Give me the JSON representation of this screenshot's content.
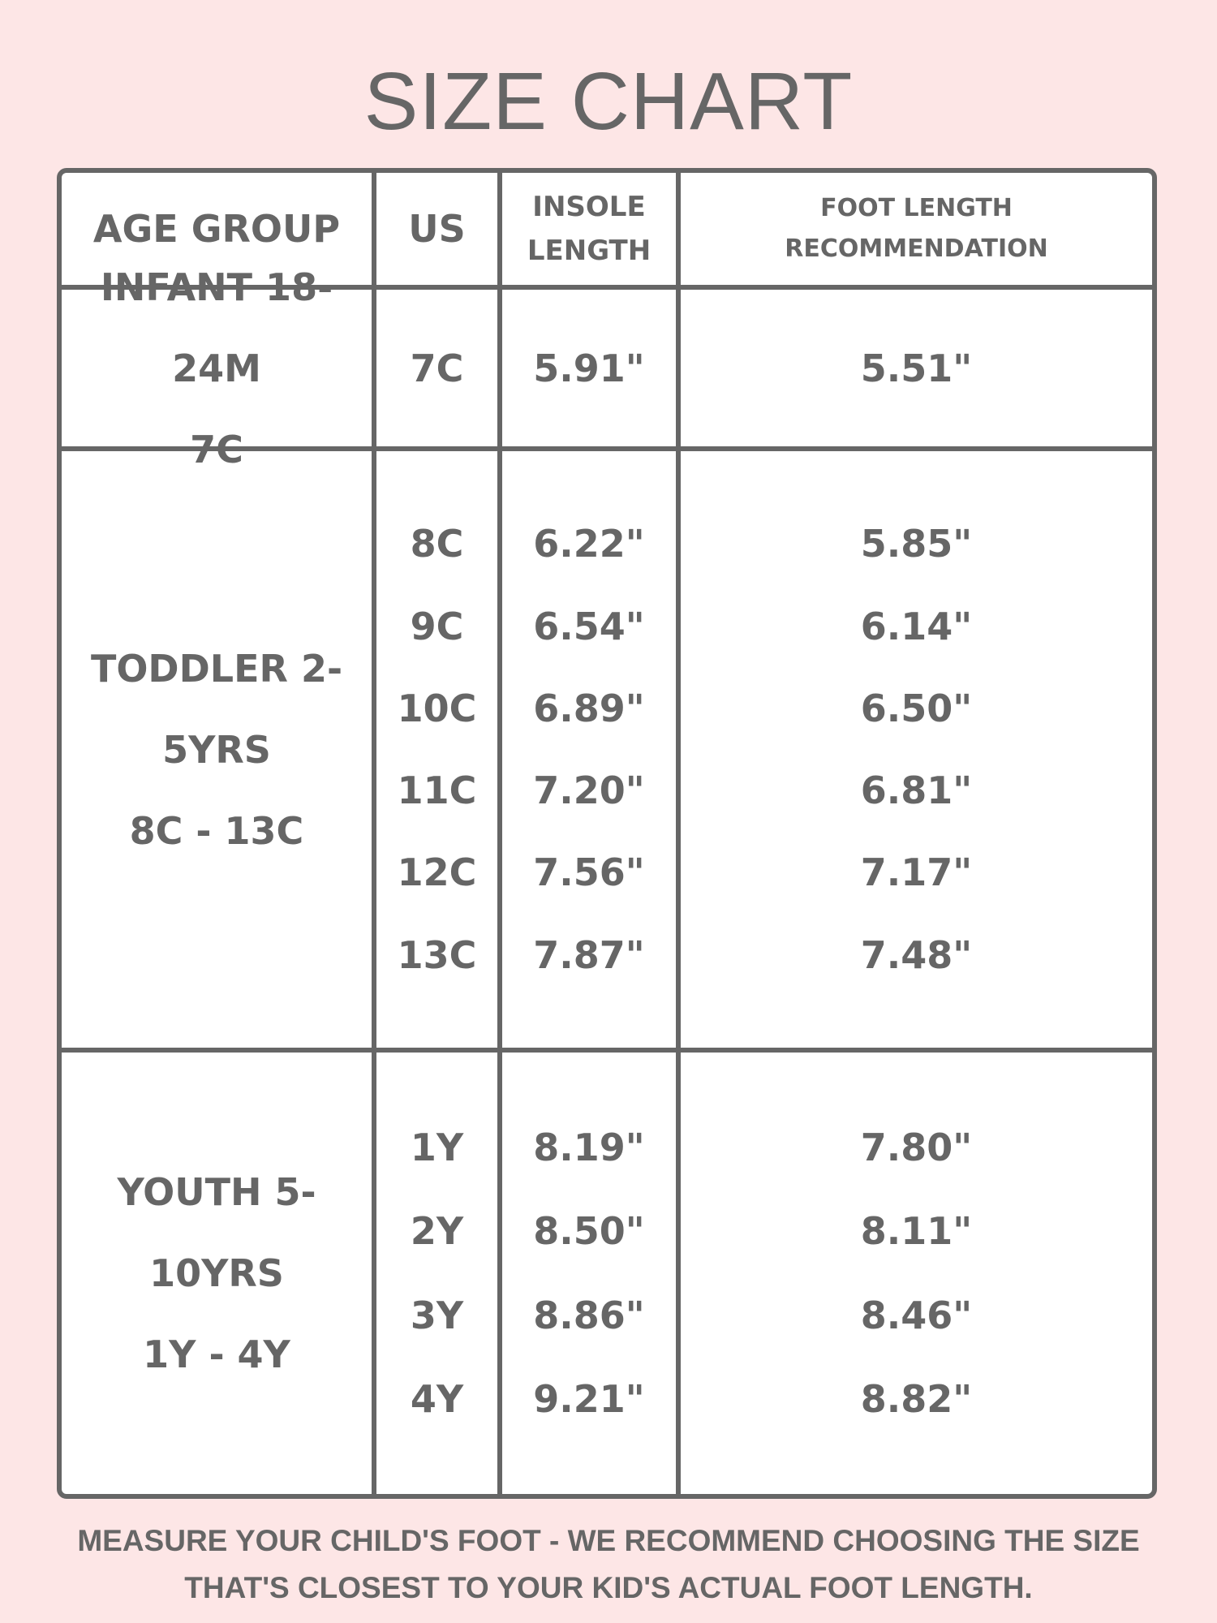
{
  "title": "SIZE CHART",
  "headers": [
    "AGE GROUP",
    "US",
    "INSOLE LENGTH",
    "FOOT LENGTH RECOMMENDATION"
  ],
  "headers_lines": {
    "insole": [
      "INSOLE",
      "LENGTH"
    ],
    "foot": [
      "FOOT LENGTH",
      "RECOMMENDATION"
    ]
  },
  "groups": [
    {
      "name": "INFANT 18-24M",
      "range": "7C",
      "rows": [
        {
          "us": "7C",
          "insole": "5.91\"",
          "foot": "5.51\""
        }
      ]
    },
    {
      "name": "TODDLER 2-5YRS",
      "range": "8C - 13C",
      "rows": [
        {
          "us": "8C",
          "insole": "6.22\"",
          "foot": "5.85\""
        },
        {
          "us": "9C",
          "insole": "6.54\"",
          "foot": "6.14\""
        },
        {
          "us": "10C",
          "insole": "6.89\"",
          "foot": "6.50\""
        },
        {
          "us": "11C",
          "insole": "7.20\"",
          "foot": "6.81\""
        },
        {
          "us": "12C",
          "insole": "7.56\"",
          "foot": "7.17\""
        },
        {
          "us": "13C",
          "insole": "7.87\"",
          "foot": "7.48\""
        }
      ]
    },
    {
      "name": "YOUTH 5-10YRS",
      "range": "1Y - 4Y",
      "rows": [
        {
          "us": "1Y",
          "insole": "8.19\"",
          "foot": "7.80\""
        },
        {
          "us": "2Y",
          "insole": "8.50\"",
          "foot": "8.11\""
        },
        {
          "us": "3Y",
          "insole": "8.86\"",
          "foot": "8.46\""
        },
        {
          "us": "4Y",
          "insole": "9.21\"",
          "foot": "8.82\""
        }
      ]
    }
  ],
  "footer": [
    "MEASURE YOUR CHILD'S FOOT - WE RECOMMEND CHOOSING THE SIZE",
    "THAT'S CLOSEST TO YOUR KID'S ACTUAL FOOT LENGTH."
  ],
  "colors": {
    "background": "#fde6e6",
    "text": "#666666",
    "table": "#ffffff"
  }
}
